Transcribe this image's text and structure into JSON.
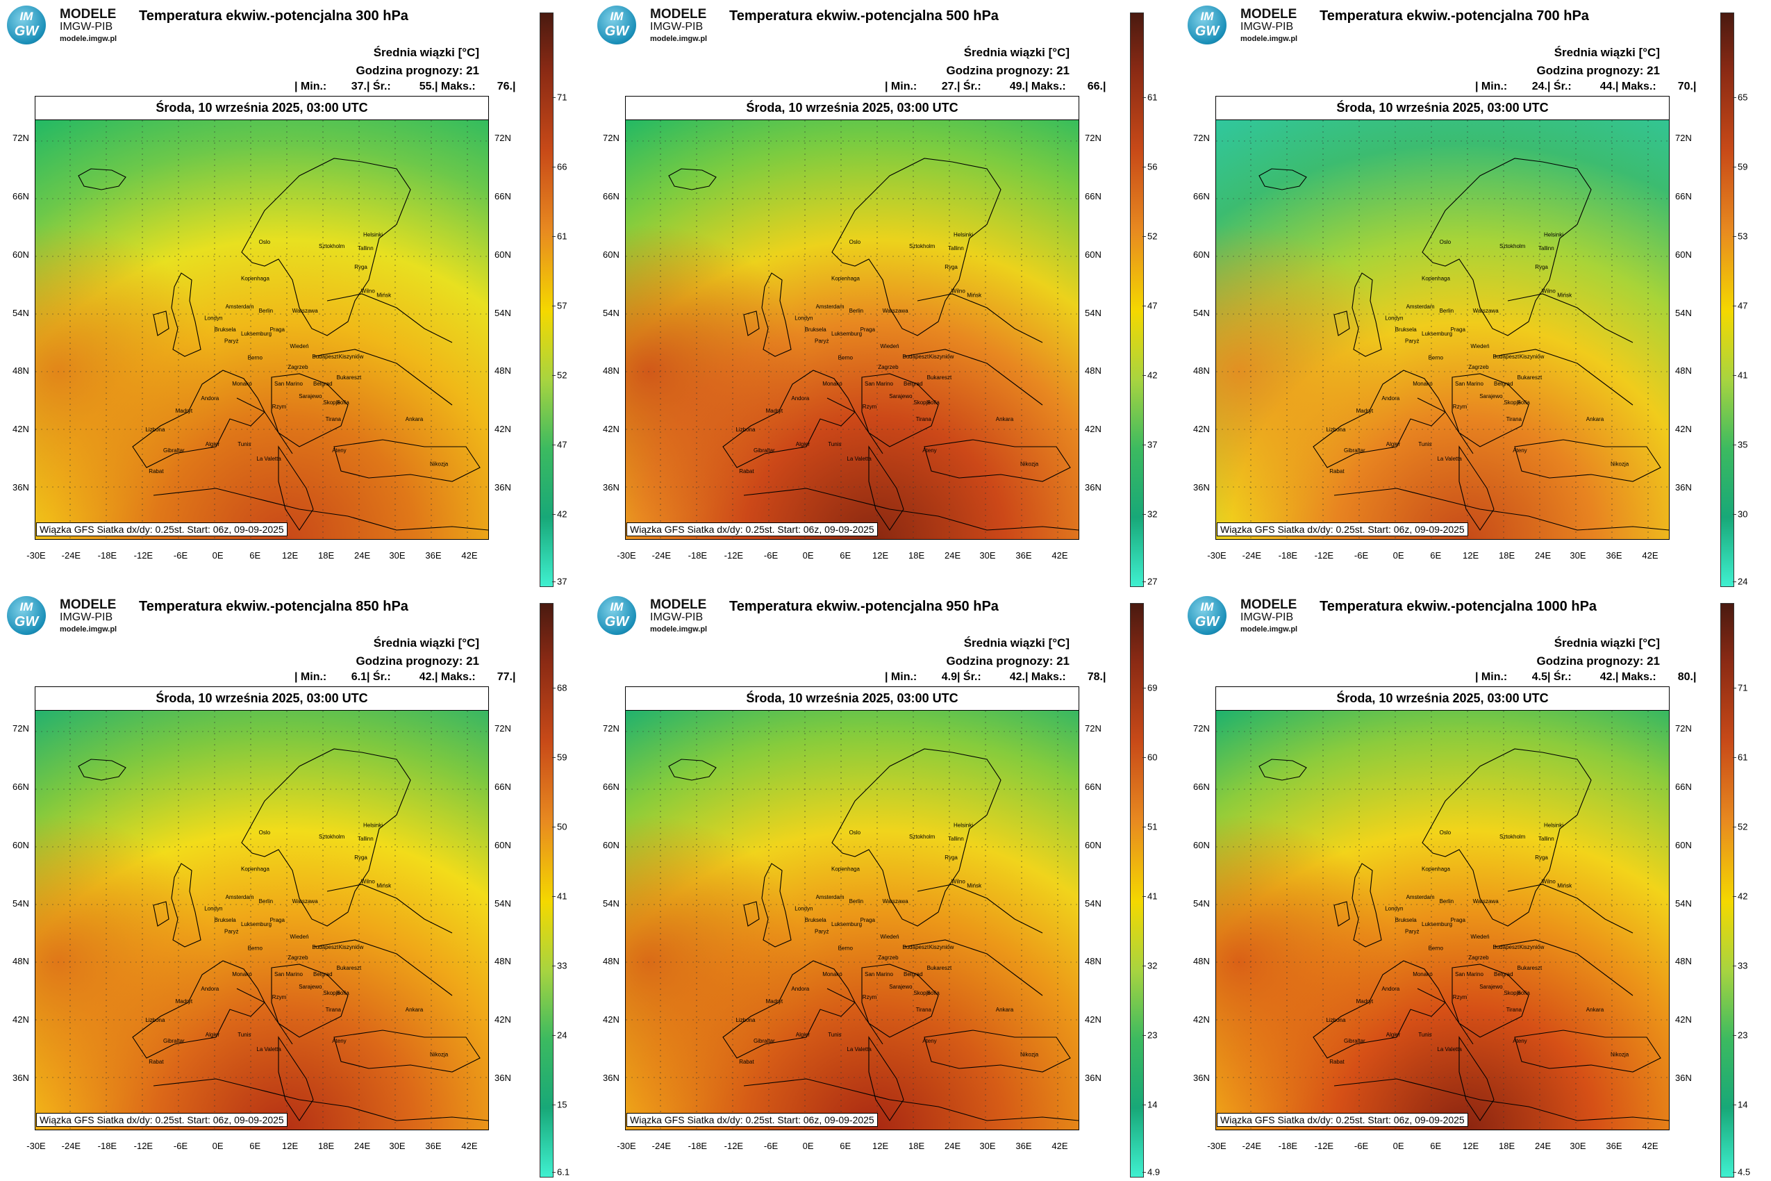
{
  "logo": {
    "abbr_top": "IM",
    "abbr_bottom": "GW",
    "line1": "MODELE",
    "line2": "IMGW-PIB",
    "line3": "modele.imgw.pl"
  },
  "common": {
    "ensemble_label": "Średnia wiązki [°C]",
    "forecast_hour": "Godzina prognozy: 21",
    "date": "Środa, 10 września 2025, 03:00 UTC",
    "source": "Wiązka GFS Siatka dx/dy: 0.25st. Start: 06z, 09-09-2025",
    "lat_labels": [
      "72N",
      "66N",
      "60N",
      "54N",
      "48N",
      "42N",
      "36N"
    ],
    "lon_labels": [
      "-30E",
      "-24E",
      "-18E",
      "-12E",
      "-6E",
      "0E",
      "6E",
      "12E",
      "18E",
      "24E",
      "30E",
      "36E",
      "42E"
    ],
    "cities": [
      "Oslo",
      "Sztokholm",
      "Helsinki",
      "Tallinn",
      "Ryga",
      "Wilno",
      "Mińsk",
      "Kopenhaga",
      "Amsterdam",
      "Berlin",
      "Warszawa",
      "Londyn",
      "Bruksela",
      "Luksemburg",
      "Paryż",
      "Praga",
      "Wiedeń",
      "Berno",
      "Budapeszt",
      "Kiszyniów",
      "Bukareszt",
      "Zagrzeb",
      "Belgrad",
      "San Marino",
      "Monako",
      "Sarajewo",
      "Rzym",
      "Andora",
      "Skopje",
      "Madryt",
      "Sofia",
      "Tirana",
      "Ateny",
      "Ankara",
      "Lizbona",
      "Gibraltar",
      "Algier",
      "Tunis",
      "La Valetta",
      "Rabat",
      "Nikozja"
    ]
  },
  "panels": [
    {
      "title": "Temperatura ekwiw.-potencjalna 300 hPa",
      "min": "37.",
      "avg": "55.",
      "max": "76.",
      "colorbar": [
        "71",
        "66",
        "61",
        "57",
        "52",
        "47",
        "42",
        "37"
      ]
    },
    {
      "title": "Temperatura ekwiw.-potencjalna 500 hPa",
      "min": "27.",
      "avg": "49.",
      "max": "66.",
      "colorbar": [
        "61",
        "56",
        "52",
        "47",
        "42",
        "37",
        "32",
        "27"
      ]
    },
    {
      "title": "Temperatura ekwiw.-potencjalna 700 hPa",
      "min": "24.",
      "avg": "44.",
      "max": "70.",
      "colorbar": [
        "65",
        "59",
        "53",
        "47",
        "41",
        "35",
        "30",
        "24"
      ]
    },
    {
      "title": "Temperatura ekwiw.-potencjalna 850 hPa",
      "min": "6.1",
      "avg": "42.",
      "max": "77.",
      "colorbar": [
        "68",
        "59",
        "50",
        "41",
        "33",
        "24",
        "15",
        "6.1"
      ]
    },
    {
      "title": "Temperatura ekwiw.-potencjalna 950 hPa",
      "min": "4.9",
      "avg": "42.",
      "max": "78.",
      "colorbar": [
        "69",
        "60",
        "51",
        "41",
        "32",
        "23",
        "14",
        "4.9"
      ]
    },
    {
      "title": "Temperatura ekwiw.-potencjalna 1000 hPa",
      "min": "4.5",
      "avg": "42.",
      "max": "80.",
      "colorbar": [
        "71",
        "61",
        "52",
        "42",
        "33",
        "23",
        "14",
        "4.5"
      ]
    }
  ],
  "stats_labels": {
    "min": "| Min.:",
    "avg": "| Śr.:",
    "max": "| Maks.:",
    "end": "|"
  },
  "colors": {
    "colorbar_top": "#4a1a10",
    "colorbar_mid": "#f4d800",
    "colorbar_bottom": "#40f0d0"
  }
}
